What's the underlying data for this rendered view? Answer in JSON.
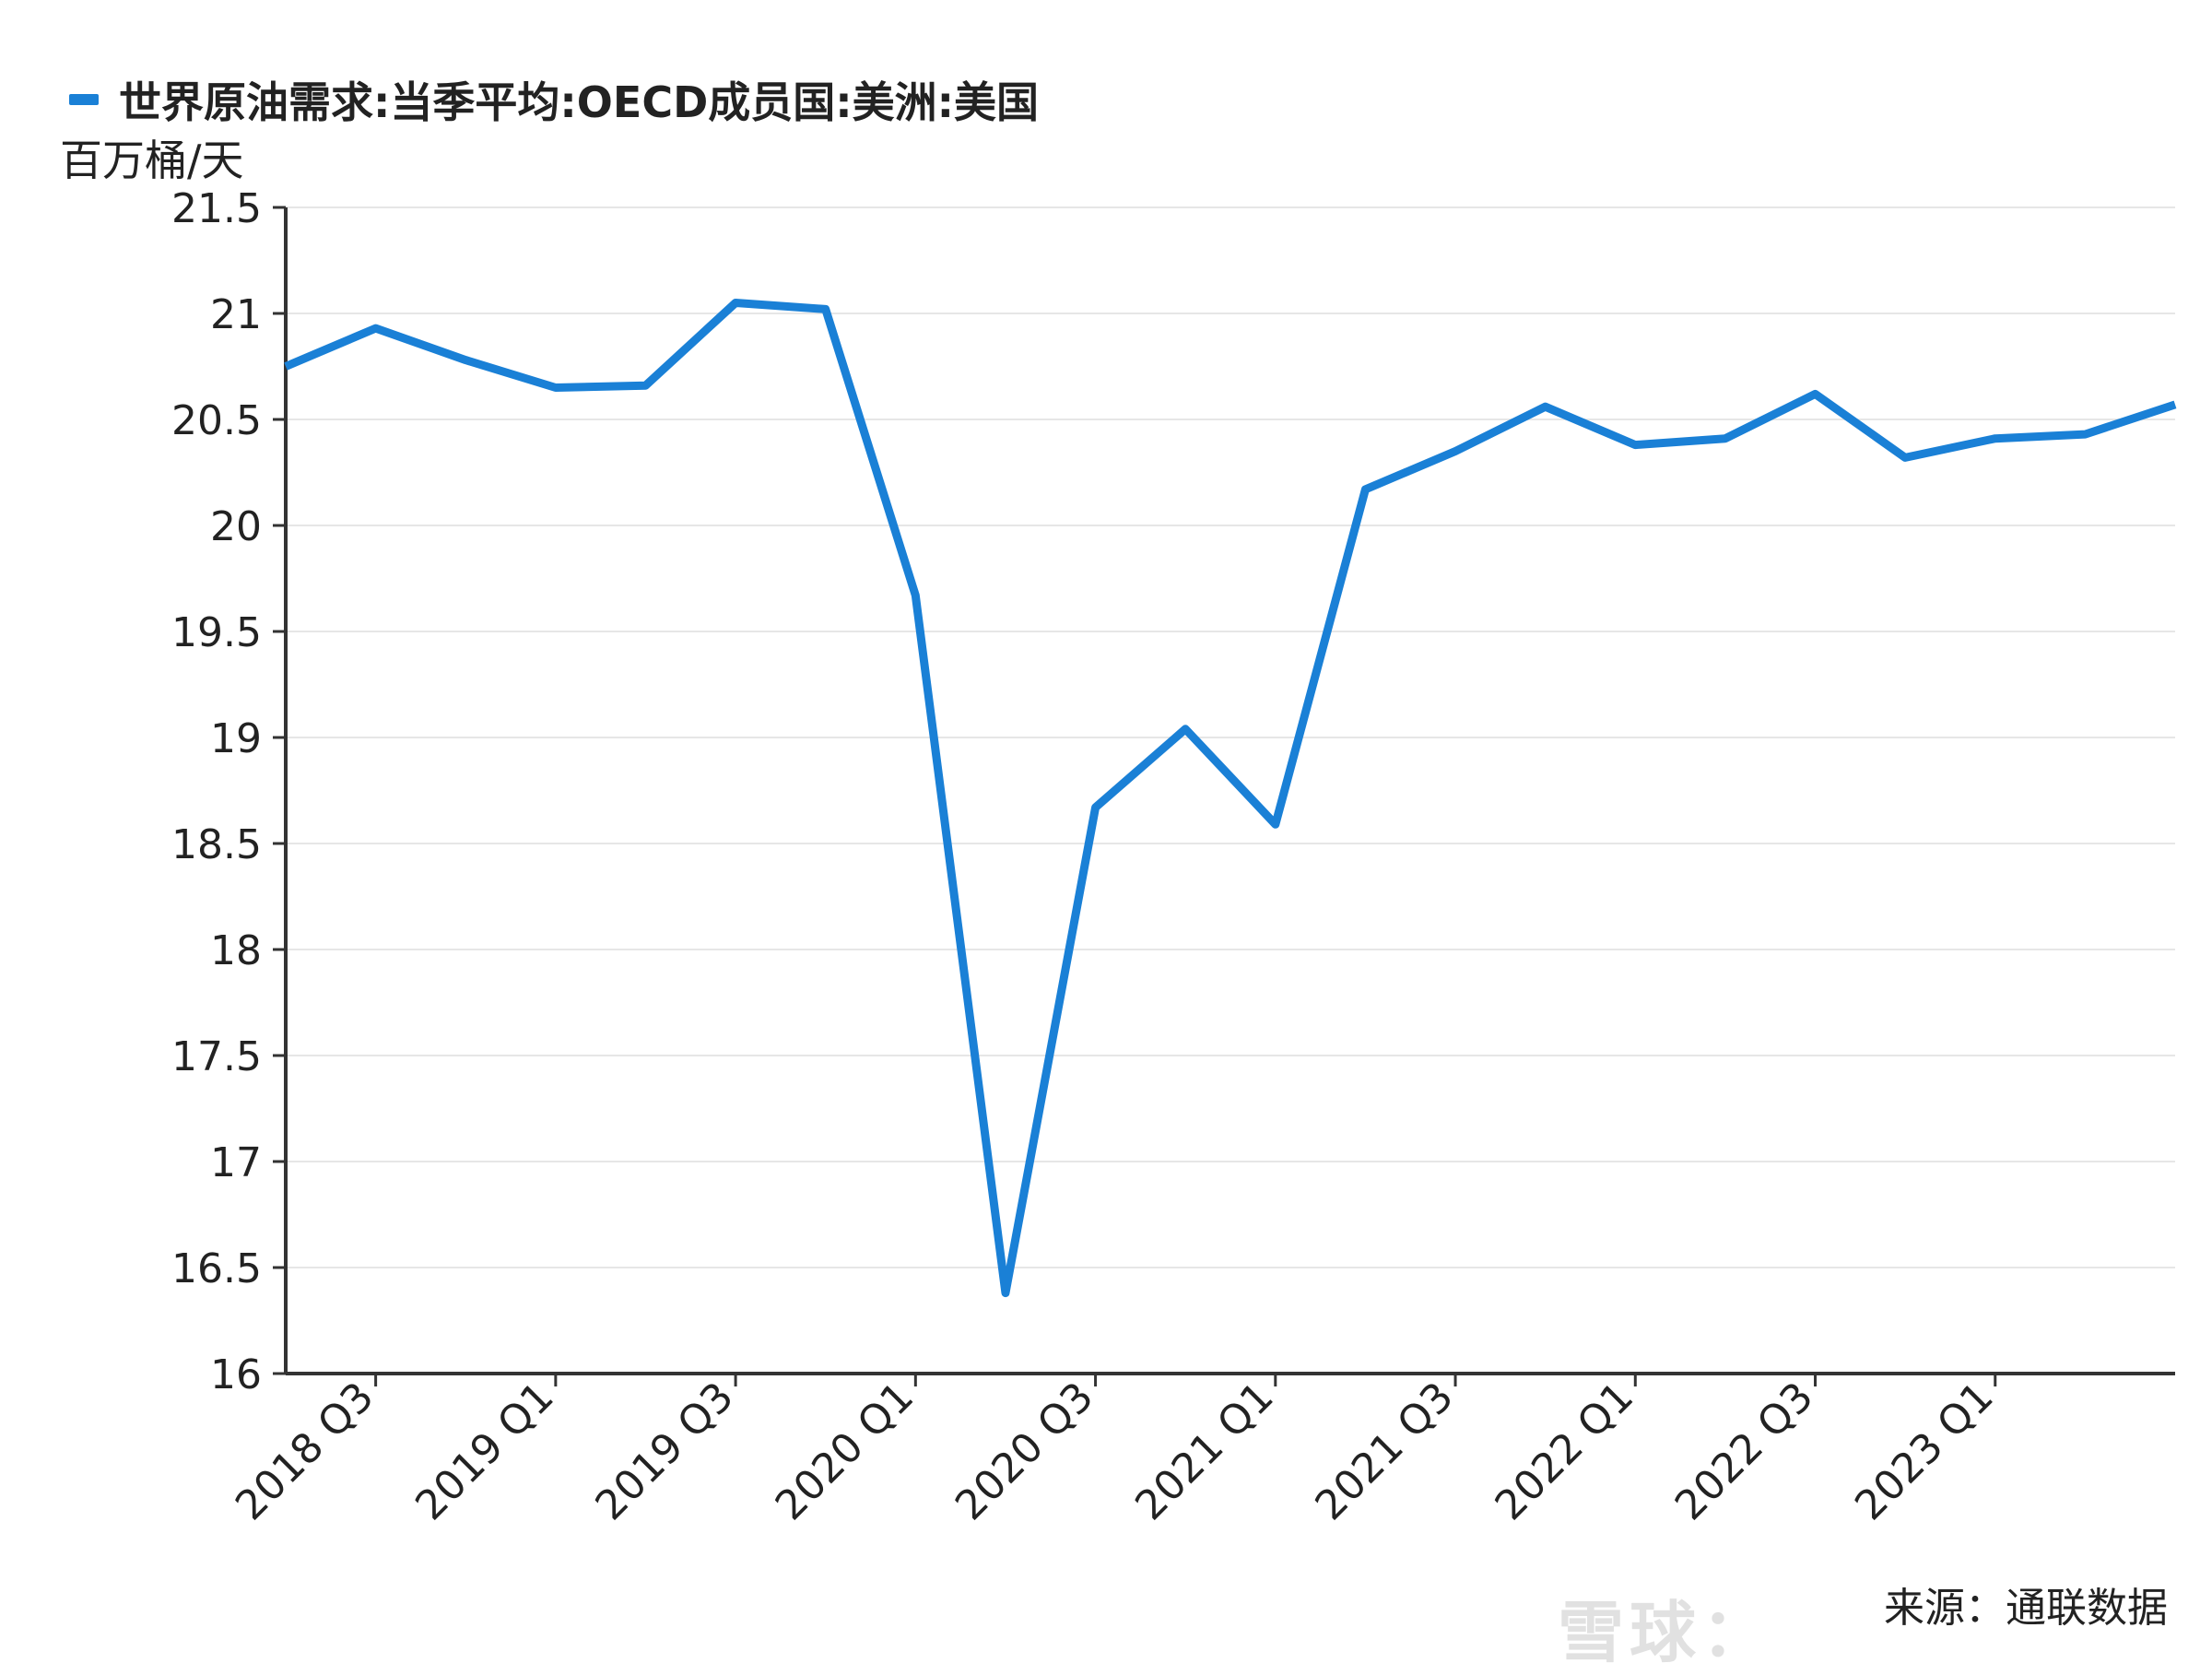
{
  "chart_data": {
    "type": "line",
    "legend_title": "世界原油需求:当季平均:OECD成员国:美洲:美国",
    "ylabel": "百万桶/天",
    "source": "来源：通联数据",
    "watermark": "雪球：",
    "ylim": [
      16,
      21.5
    ],
    "yticks": [
      "21.5",
      "21",
      "20.5",
      "20",
      "19.5",
      "19",
      "18.5",
      "18",
      "17.5",
      "17",
      "16.5",
      "16"
    ],
    "grid": true,
    "legend_placement": "top-left",
    "x_tick_labels": [
      "2018 Q3",
      "2019 Q1",
      "2019 Q3",
      "2020 Q1",
      "2020 Q3",
      "2021 Q1",
      "2021 Q3",
      "2022 Q1",
      "2022 Q3",
      "2023 Q1"
    ],
    "series": [
      {
        "name": "世界原油需求:当季平均:OECD成员国:美洲:美国",
        "color": "#1a80d6",
        "points": [
          {
            "x": "2018 Q2",
            "y": 20.75
          },
          {
            "x": "2018 Q3",
            "y": 20.93
          },
          {
            "x": "2018 Q4",
            "y": 20.78
          },
          {
            "x": "2019 Q1",
            "y": 20.65
          },
          {
            "x": "2019 Q2",
            "y": 20.66
          },
          {
            "x": "2019 Q3",
            "y": 21.05
          },
          {
            "x": "2019 Q4",
            "y": 21.02
          },
          {
            "x": "2020 Q1",
            "y": 19.67
          },
          {
            "x": "2020 Q2",
            "y": 16.38
          },
          {
            "x": "2020 Q3",
            "y": 18.67
          },
          {
            "x": "2020 Q4",
            "y": 19.04
          },
          {
            "x": "2021 Q1",
            "y": 18.59
          },
          {
            "x": "2021 Q2",
            "y": 20.17
          },
          {
            "x": "2021 Q3",
            "y": 20.35
          },
          {
            "x": "2021 Q4",
            "y": 20.56
          },
          {
            "x": "2022 Q1",
            "y": 20.38
          },
          {
            "x": "2022 Q2",
            "y": 20.41
          },
          {
            "x": "2022 Q3",
            "y": 20.62
          },
          {
            "x": "2022 Q4",
            "y": 20.32
          },
          {
            "x": "2023 Q1",
            "y": 20.41
          },
          {
            "x": "2023 Q2",
            "y": 20.43
          },
          {
            "x": "2023 Q3",
            "y": 20.57
          }
        ]
      }
    ]
  }
}
